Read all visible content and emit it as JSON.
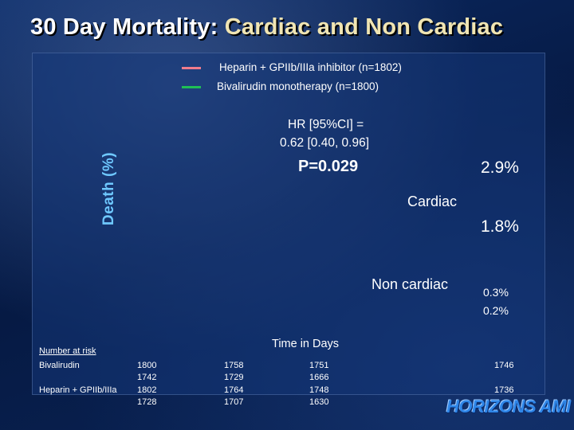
{
  "slide": {
    "title_main": "30 Day Mortality: ",
    "title_accent": "Cardiac and Non Cardiac",
    "logo_text": "HORIZONS AMI"
  },
  "colors": {
    "heparin_series": "#f07c8c",
    "bivalirudin_series": "#1fbf55",
    "ylabel": "#6ec8ff"
  },
  "chart_data": {
    "type": "line",
    "title": "30 Day Mortality: Cardiac and Non Cardiac",
    "ylabel": "Death (%)",
    "xlabel": "Time in Days",
    "series": [
      {
        "name": "Heparin + GPIIb/IIIa inhibitor (n=1802)"
      },
      {
        "name": "Bivalirudin monotherapy (n=1800)"
      }
    ],
    "end_values": {
      "cardiac": {
        "heparin": 2.9,
        "bivalirudin": 1.8
      },
      "non_cardiac": {
        "heparin": 0.3,
        "bivalirudin": 0.2
      }
    },
    "annotations": {
      "hr_line1": "HR [95%CI] =",
      "hr_line2": "0.62 [0.40, 0.96]",
      "p_value": "P=0.029",
      "cardiac_label": "Cardiac",
      "noncardiac_label": "Non cardiac",
      "cardiac_heparin_end": "2.9%",
      "cardiac_bivalirudin_end": "1.8%",
      "noncardiac_heparin_end": "0.3%",
      "noncardiac_bivalirudin_end": "0.2%"
    },
    "number_at_risk": {
      "title": "Number at risk",
      "bivalirudin_label": "Bivalirudin",
      "heparin_label": "Heparin + GPIIb/IIIa",
      "bivalirudin_row1": [
        "1800",
        "1758",
        "1751",
        "1746"
      ],
      "bivalirudin_row2": [
        "1742",
        "1729",
        "1666"
      ],
      "heparin_row1": [
        "1802",
        "1764",
        "1748",
        "1736"
      ],
      "heparin_row2": [
        "1728",
        "1707",
        "1630"
      ]
    }
  }
}
